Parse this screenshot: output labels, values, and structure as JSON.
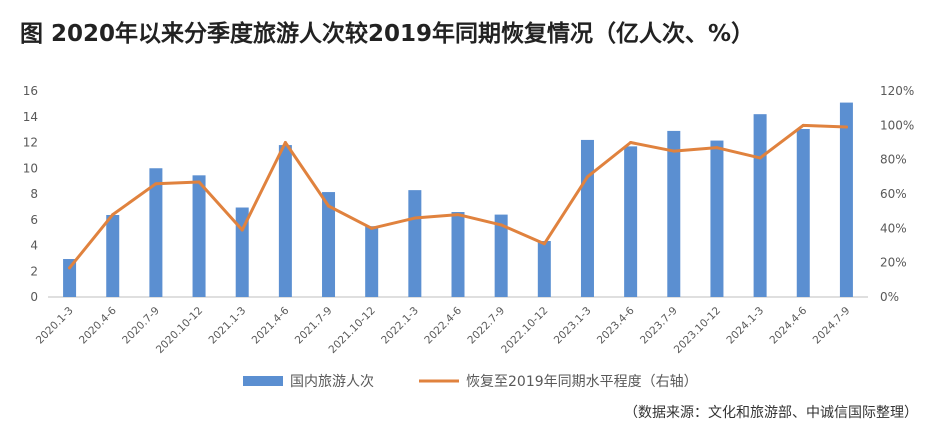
{
  "title": "图 2020年以来分季度旅游人次较2019年同期恢复情况（亿人次、%）",
  "source": "（数据来源：文化和旅游部、中诚信国际整理）",
  "colors": {
    "bar": "#5b8fd1",
    "line": "#e0823e",
    "axis": "#bfbfbf",
    "text": "#595959"
  },
  "chart_data": {
    "type": "bar",
    "categories": [
      "2020.1-3",
      "2020.4-6",
      "2020.7-9",
      "2020.10-12",
      "2021.1-3",
      "2021.4-6",
      "2021.7-9",
      "2021.10-12",
      "2022.1-3",
      "2022.4-6",
      "2022.7-9",
      "2022.10-12",
      "2023.1-3",
      "2023.4-6",
      "2023.7-9",
      "2023.10-12",
      "2024.1-3",
      "2024.4-6",
      "2024.7-9"
    ],
    "series": [
      {
        "name": "国内旅游人次",
        "type": "bar",
        "axis": "left",
        "values": [
          2.95,
          6.37,
          10.0,
          9.45,
          6.95,
          11.8,
          8.15,
          5.5,
          8.3,
          6.6,
          6.4,
          4.35,
          12.2,
          11.7,
          12.9,
          12.15,
          14.2,
          13.05,
          15.1
        ]
      },
      {
        "name": "恢复至2019年同期水平程度（右轴）",
        "type": "line",
        "axis": "right",
        "values": [
          17,
          48,
          66,
          67,
          39,
          90,
          53,
          40,
          46,
          48,
          42,
          31,
          70,
          90,
          85,
          87,
          81,
          100,
          99
        ]
      }
    ],
    "y_left": {
      "min": 0,
      "max": 16,
      "ticks": [
        "0",
        "2",
        "4",
        "6",
        "8",
        "10",
        "12",
        "14",
        "16"
      ]
    },
    "y_right": {
      "min": 0,
      "max": 120,
      "ticks": [
        "0%",
        "20%",
        "40%",
        "60%",
        "80%",
        "100%",
        "120%"
      ]
    },
    "grid": false,
    "legend_position": "bottom"
  }
}
